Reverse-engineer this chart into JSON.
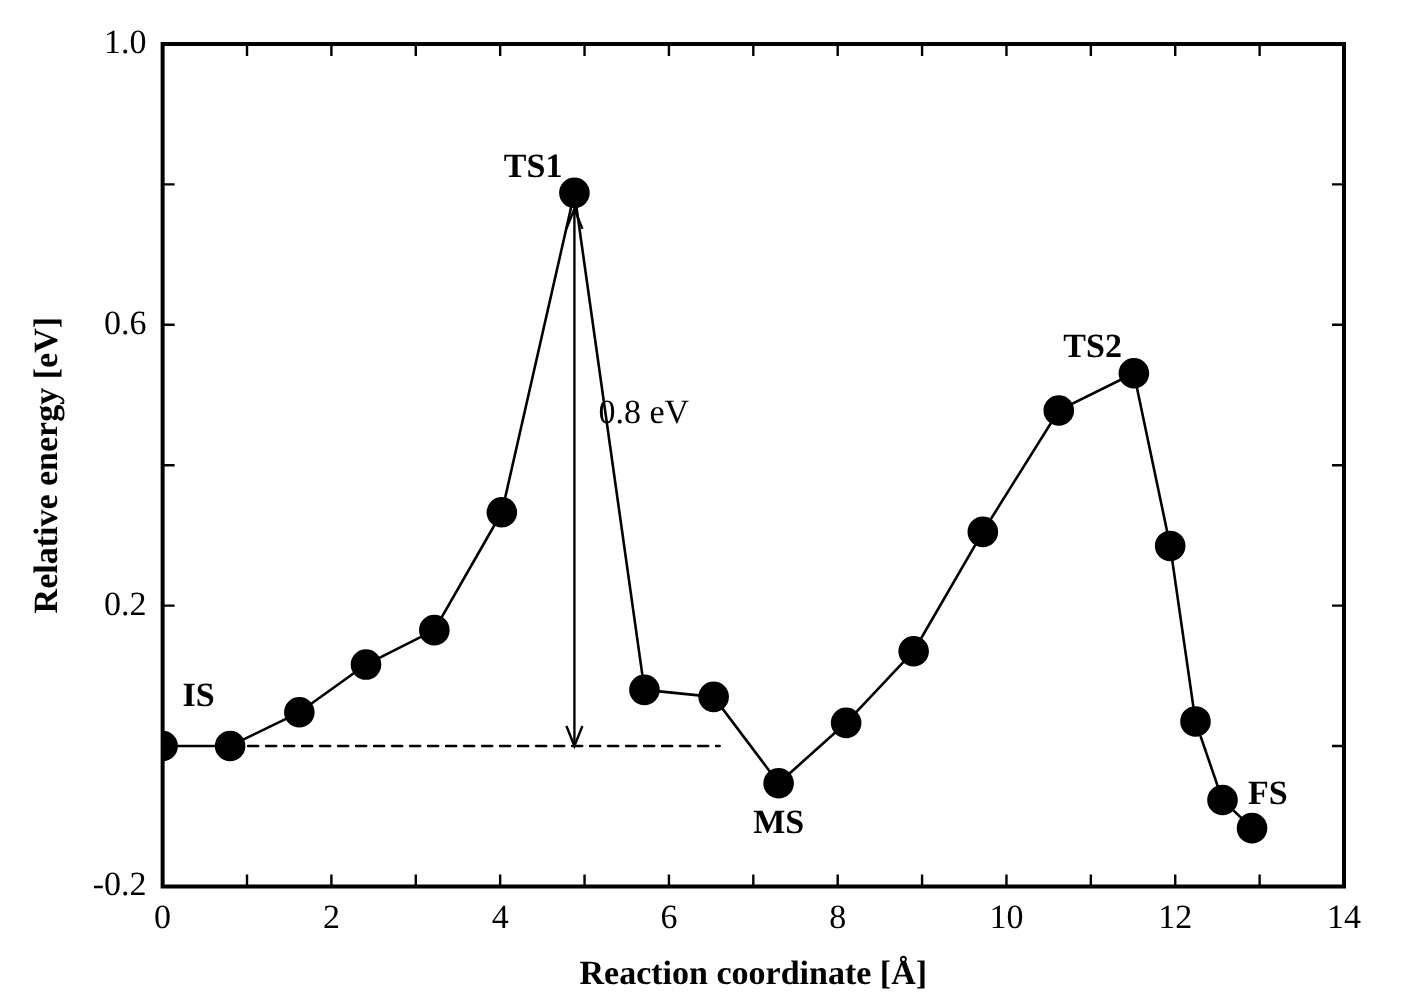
{
  "chart_data": {
    "type": "line",
    "xlabel": "Reaction coordinate [Å]",
    "ylabel": "Relative energy [eV]",
    "xlim": [
      0,
      14
    ],
    "xticks": [
      0,
      {
        "value": 1,
        "label": null
      },
      2,
      {
        "value": 3,
        "label": null
      },
      4,
      {
        "value": 5,
        "label": null
      },
      6,
      {
        "value": 7,
        "label": null
      },
      8,
      {
        "value": 9,
        "label": null
      },
      10,
      {
        "value": 11,
        "label": null
      },
      12,
      {
        "value": 13,
        "label": null
      },
      14
    ],
    "ylim": [
      -0.2,
      1.0
    ],
    "yticks": [
      -0.2,
      {
        "value": 0,
        "label": null
      },
      0.2,
      {
        "value": 0.4,
        "label": null
      },
      0.6,
      {
        "value": 0.8,
        "label": null
      },
      {
        "value": 1.0,
        "label": "1.0"
      }
    ],
    "grid": false,
    "legend": false,
    "marker": "circle",
    "line_style": "solid",
    "series": [
      {
        "color": "#000000",
        "x": [
          0,
          0.8,
          1.62,
          2.41,
          3.22,
          4.02,
          4.88,
          5.71,
          6.53,
          7.3,
          8.1,
          8.9,
          9.72,
          10.62,
          11.51,
          11.94,
          12.24,
          12.56,
          12.91
        ],
        "values": [
          0,
          0.0,
          0.048,
          0.116,
          0.165,
          0.333,
          0.788,
          0.08,
          0.07,
          -0.053,
          0.033,
          0.135,
          0.305,
          0.478,
          0.531,
          0.285,
          0.035,
          -0.077,
          -0.117
        ]
      },
      {
        "color": "#000000",
        "type": "line",
        "x": [
          0.8,
          6.6
        ],
        "values": [
          0,
          0
        ],
        "marker": "none",
        "line_style": "dashed"
      }
    ],
    "annotations": [
      {
        "text": "IS",
        "x": 0,
        "y": 0
      },
      {
        "text": "TS1",
        "x": 4.88,
        "y": 0.788
      },
      "0.8 eV",
      {
        "text": "MS",
        "x": 7.3,
        "y": -0.053
      },
      {
        "text": "TS2",
        "x": 11.51,
        "y": 0.531
      },
      {
        "text": "FS",
        "x": 12.91,
        "y": -0.117
      }
    ]
  }
}
